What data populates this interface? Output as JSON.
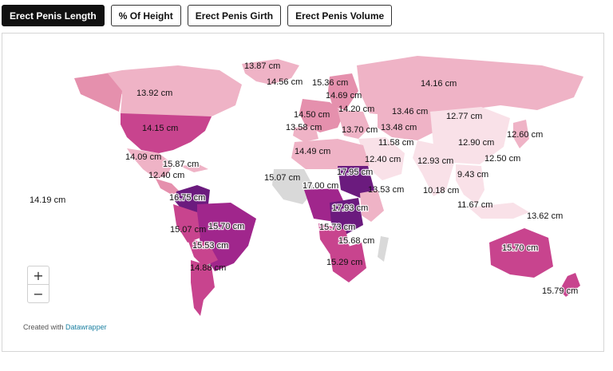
{
  "tabs": [
    {
      "label": "Erect Penis Length",
      "active": true
    },
    {
      "label": "% Of Height",
      "active": false
    },
    {
      "label": "Erect Penis Girth",
      "active": false
    },
    {
      "label": "Erect Penis Volume",
      "active": false
    }
  ],
  "map": {
    "labels": [
      "13.87 cm",
      "14.56 cm",
      "15.36 cm",
      "14.16 cm",
      "13.92 cm",
      "14.69 cm",
      "14.20 cm",
      "13.46 cm",
      "12.77 cm",
      "14.50 cm",
      "14.15 cm",
      "13.58 cm",
      "13.70 cm",
      "13.48 cm",
      "12.60 cm",
      "11.58 cm",
      "12.90 cm",
      "14.49 cm",
      "14.09 cm",
      "12.40 cm",
      "12.93 cm",
      "12.50 cm",
      "15.87 cm",
      "17.95 cm",
      "12.40 cm",
      "15.07 cm",
      "9.43 cm",
      "17.00 cm",
      "13.53 cm",
      "10.18 cm",
      "16.75 cm",
      "14.19 cm",
      "17.93 cm",
      "11.67 cm",
      "15.70 cm",
      "15.07 cm",
      "15.73 cm",
      "13.62 cm",
      "15.68 cm",
      "15.53 cm",
      "15.70 cm",
      "15.29 cm",
      "14.88 cm",
      "15.79 cm"
    ],
    "legend": "",
    "colors": {
      "lightest": "#f9e1e8",
      "light": "#efb3c6",
      "mid": "#e590ad",
      "strong": "#c8448e",
      "dark": "#a0268c",
      "darkest": "#6b1b7e",
      "nodata": "#d9d9d9"
    }
  },
  "zoom": {
    "plus": "+",
    "minus": "−"
  },
  "credit": {
    "prefix": "Created with",
    "link": "Datawrapper"
  }
}
